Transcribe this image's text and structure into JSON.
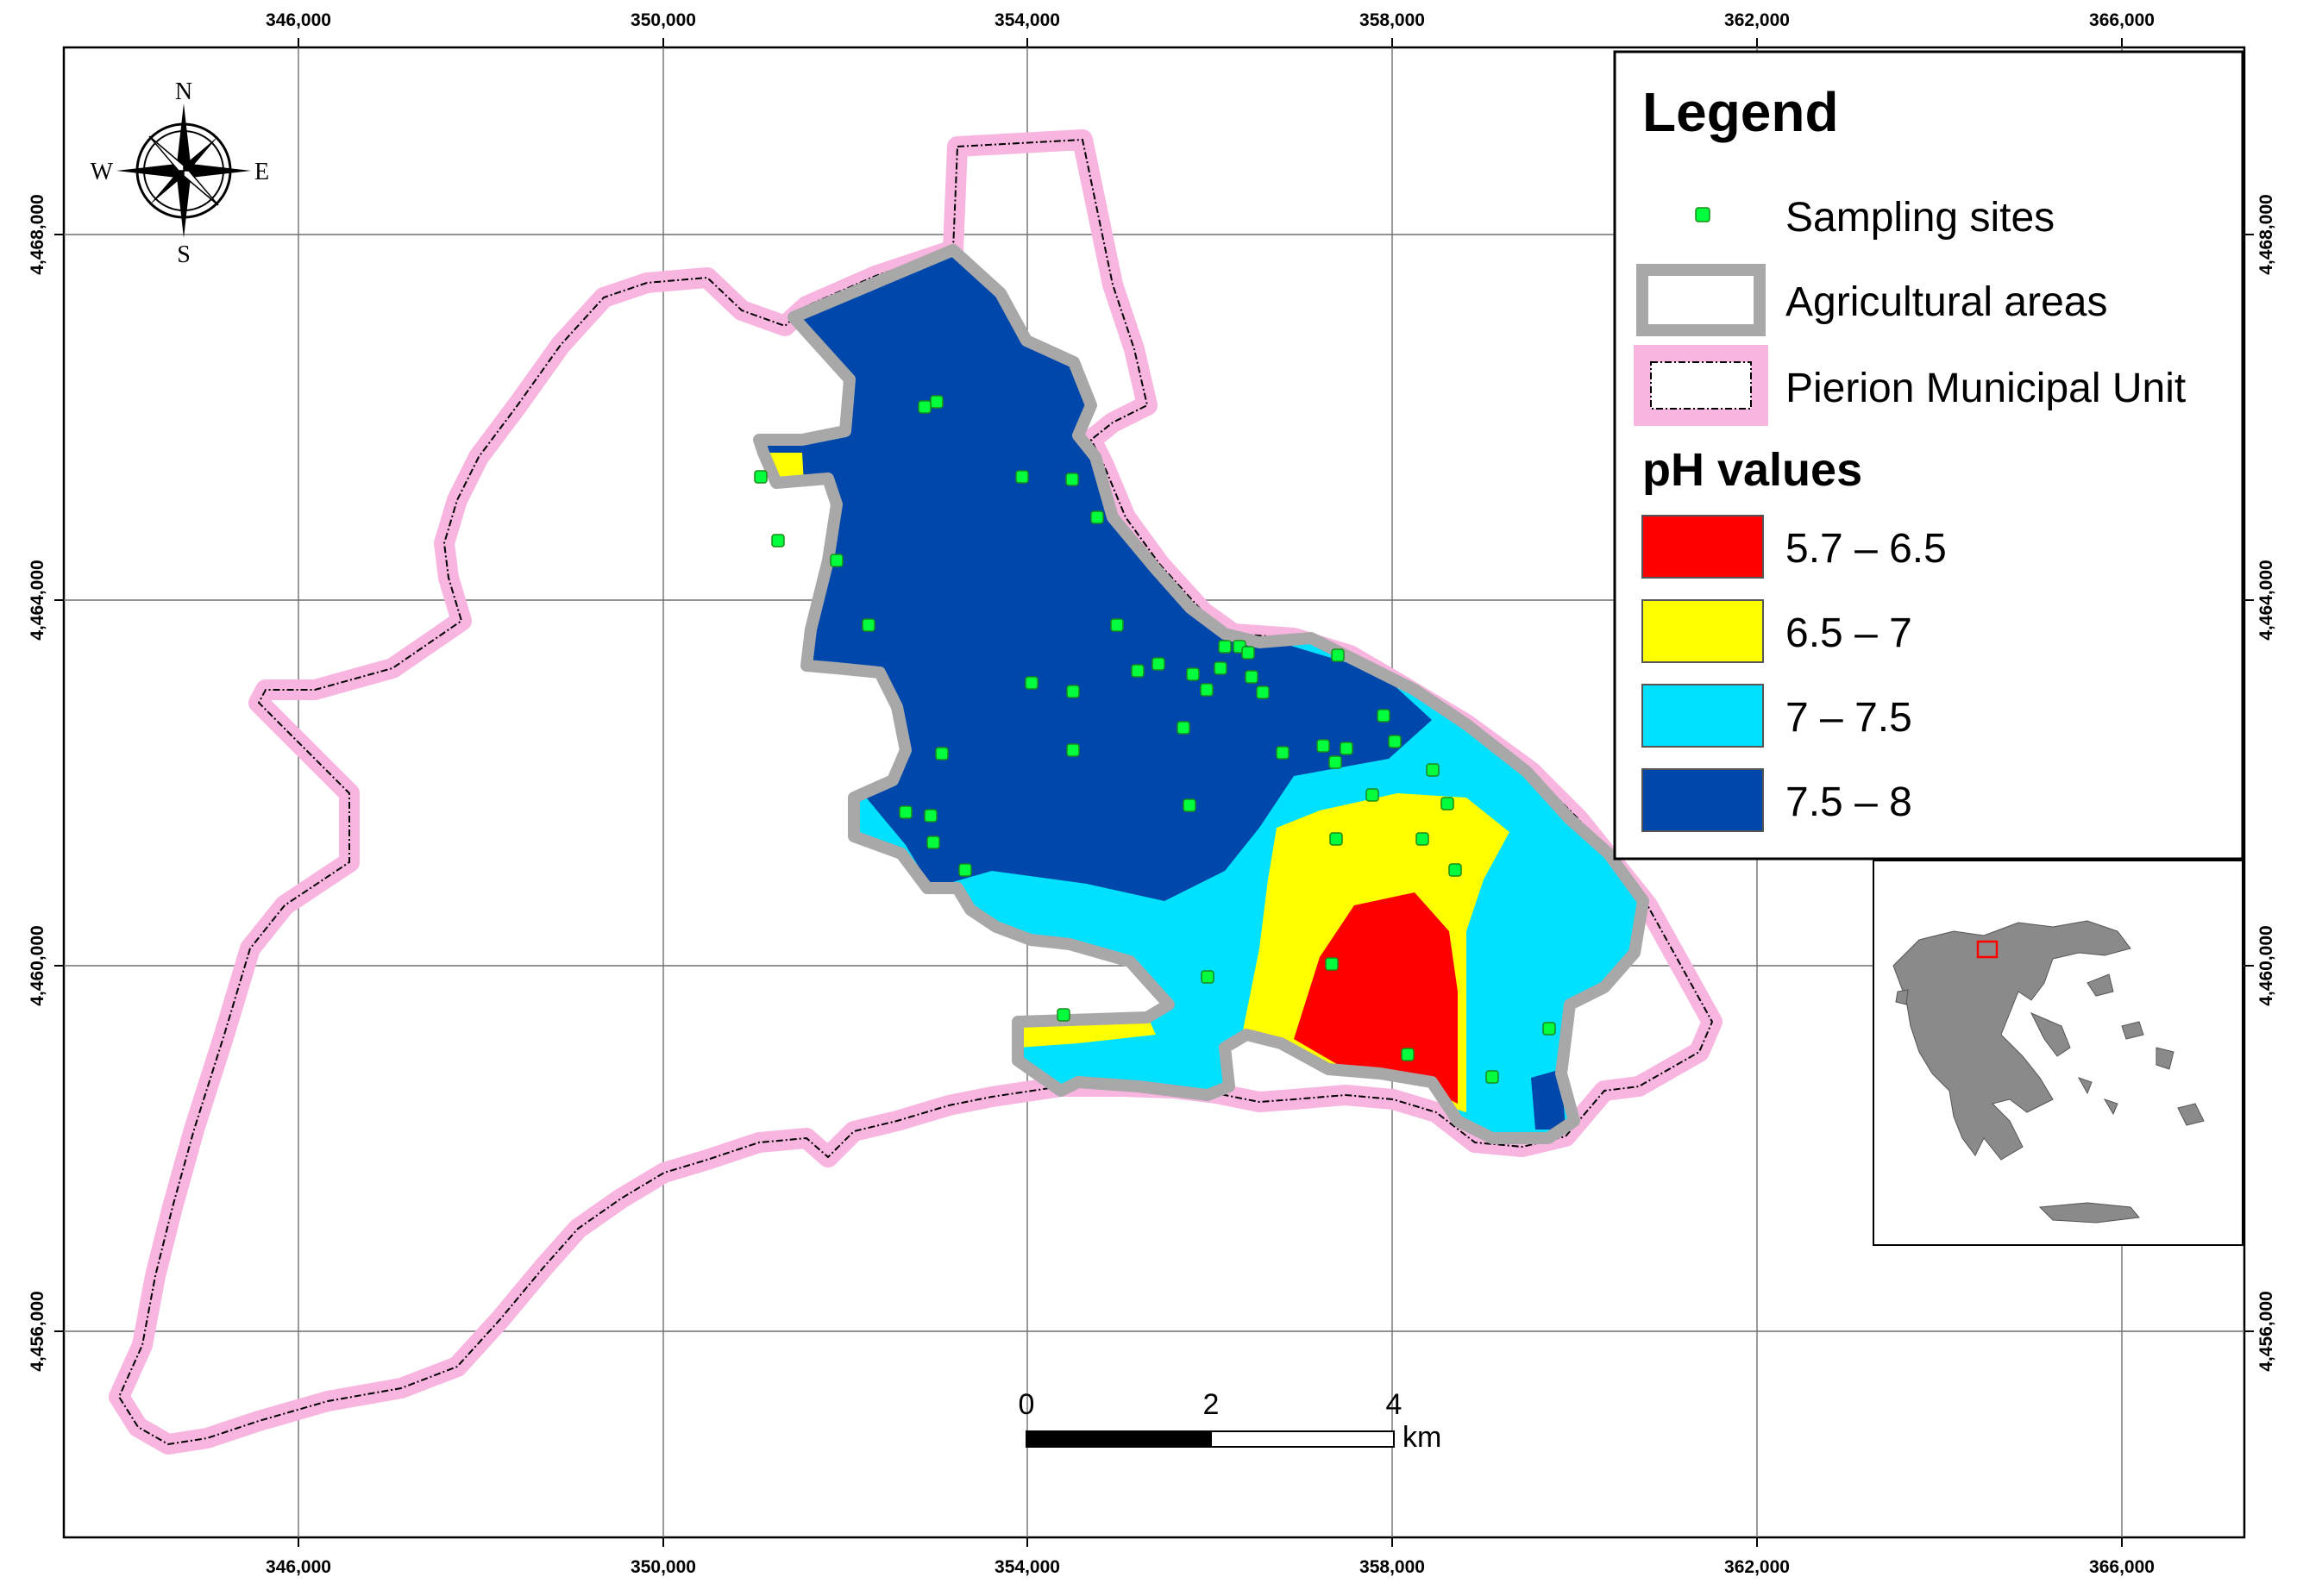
{
  "map": {
    "x_ticks": [
      "346,000",
      "350,000",
      "354,000",
      "358,000",
      "362,000",
      "366,000"
    ],
    "y_ticks": [
      "4,468,000",
      "4,464,000",
      "4,460,000",
      "4,456,000"
    ],
    "compass": {
      "n": "N",
      "s": "S",
      "e": "E",
      "w": "W"
    },
    "scale_bar": {
      "labels": [
        "0",
        "2",
        "4"
      ],
      "unit": "km"
    }
  },
  "legend": {
    "title": "Legend",
    "sampling_label": "Sampling sites",
    "agri_label": "Agricultural areas",
    "muni_label": "Pierion Municipal Unit",
    "ph_title": "pH values",
    "classes": [
      {
        "label": "5.7 – 6.5",
        "color": "#ff0000"
      },
      {
        "label": "6.5 – 7",
        "color": "#ffff00"
      },
      {
        "label": "7 – 7.5",
        "color": "#00e0ff"
      },
      {
        "label": "7.5 – 8",
        "color": "#0047ab"
      }
    ]
  },
  "colors": {
    "sampling_site": "#00ff3c",
    "agri_outline": "#a8a8a8",
    "muni_outline": "#f7b5e0"
  }
}
